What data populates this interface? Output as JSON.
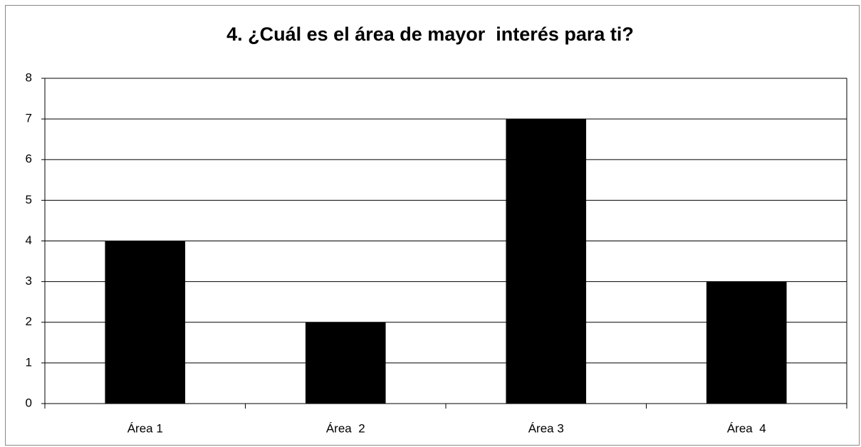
{
  "chart_data": {
    "type": "bar",
    "title": "4. ¿Cuál es el área de mayor  interés para ti?",
    "categories": [
      "Área 1",
      "Área  2",
      "Área 3",
      "Área  4"
    ],
    "values": [
      4,
      2,
      7,
      3
    ],
    "color": "#000000",
    "ylim": [
      0,
      8
    ],
    "yticks": [
      0,
      1,
      2,
      3,
      4,
      5,
      6,
      7,
      8
    ],
    "grid": true
  }
}
